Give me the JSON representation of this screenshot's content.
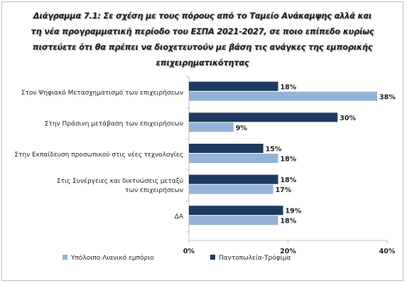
{
  "chart_data": {
    "type": "bar",
    "orientation": "horizontal",
    "title": "Διάγραμμα 7.1: Σε σχέση με τους πόρους από το Ταμείο Ανάκαμψης αλλά και τη νέα προγραμματική περίοδο του ΕΣΠΑ 2021-2027, σε ποιο επίπεδο κυρίως πιστεύετε ότι θα πρέπει να διοχετευτούν με βάση τις ανάγκες της εμπορικής επιχειρηματικότητας",
    "categories": [
      "Στον Ψηφιακό Μετασχηματισμό των επιχειρήσεων",
      "Στην Πράσινη μετάβαση των επιχειρήσεων",
      "Στην Εκπαίδευση προσωπικού στις νέες τεχνολογίες",
      "Στις Συνέργειες και δικτυώσεις μεταξύ των επιχειρήσεων",
      "ΔΑ"
    ],
    "series": [
      {
        "name": "Παντοπωλεία-Τρόφιμα",
        "color": "#1f3a5f",
        "values": [
          18,
          30,
          15,
          18,
          19
        ],
        "labels": [
          "18%",
          "30%",
          "15%",
          "18%",
          "19%"
        ]
      },
      {
        "name": "Υπόλοιπο Λιανικό εμπόριο",
        "color": "#95b3d7",
        "values": [
          38,
          9,
          18,
          17,
          18
        ],
        "labels": [
          "38%",
          "9%",
          "18%",
          "17%",
          "18%"
        ]
      }
    ],
    "xlim": [
      0,
      40
    ],
    "xticks": [
      "0%",
      "20%",
      "40%"
    ],
    "xtick_values": [
      0,
      20,
      40
    ],
    "gridlines": false,
    "legend_position": "bottom",
    "legend_order": [
      "Υπόλοιπο Λιανικό εμπόριο",
      "Παντοπωλεία-Τρόφιμα"
    ]
  }
}
